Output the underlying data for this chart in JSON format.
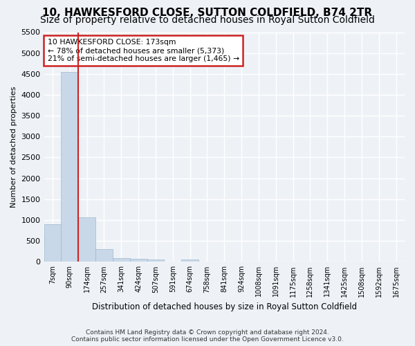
{
  "title": "10, HAWKESFORD CLOSE, SUTTON COLDFIELD, B74 2TR",
  "subtitle": "Size of property relative to detached houses in Royal Sutton Coldfield",
  "xlabel": "Distribution of detached houses by size in Royal Sutton Coldfield",
  "ylabel": "Number of detached properties",
  "footer_line1": "Contains HM Land Registry data © Crown copyright and database right 2024.",
  "footer_line2": "Contains public sector information licensed under the Open Government Licence v3.0.",
  "bin_labels": [
    "7sqm",
    "90sqm",
    "174sqm",
    "257sqm",
    "341sqm",
    "424sqm",
    "507sqm",
    "591sqm",
    "674sqm",
    "758sqm",
    "841sqm",
    "924sqm",
    "1008sqm",
    "1091sqm",
    "1175sqm",
    "1258sqm",
    "1341sqm",
    "1425sqm",
    "1508sqm",
    "1592sqm",
    "1675sqm"
  ],
  "bar_values": [
    900,
    4550,
    1060,
    300,
    80,
    65,
    50,
    0,
    60,
    0,
    0,
    0,
    0,
    0,
    0,
    0,
    0,
    0,
    0,
    0,
    0
  ],
  "bar_color": "#c8d8e8",
  "bar_edge_color": "#a0b8cc",
  "highlight_color": "#cc2222",
  "property_line_x": 1.5,
  "annotation_text": "10 HAWKESFORD CLOSE: 173sqm\n← 78% of detached houses are smaller (5,373)\n21% of semi-detached houses are larger (1,465) →",
  "annotation_box_color": "#cc2222",
  "ylim": [
    0,
    5500
  ],
  "yticks": [
    0,
    500,
    1000,
    1500,
    2000,
    2500,
    3000,
    3500,
    4000,
    4500,
    5000,
    5500
  ],
  "background_color": "#eef2f7",
  "grid_color": "#ffffff",
  "title_fontsize": 11,
  "subtitle_fontsize": 10
}
